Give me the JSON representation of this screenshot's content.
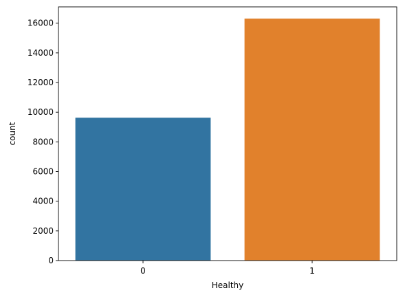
{
  "chart_data": {
    "type": "bar",
    "categories": [
      "0",
      "1"
    ],
    "values": [
      9630,
      16310
    ],
    "colors": [
      "#3274a1",
      "#e1812c"
    ],
    "xlabel": "Healthy",
    "ylabel": "count",
    "ylim": [
      0,
      17100
    ],
    "yticks": [
      0,
      2000,
      4000,
      6000,
      8000,
      10000,
      12000,
      14000,
      16000
    ],
    "ytick_labels": [
      "0",
      "2000",
      "4000",
      "6000",
      "8000",
      "10000",
      "12000",
      "14000",
      "16000"
    ],
    "grid": false,
    "legend": false
  }
}
